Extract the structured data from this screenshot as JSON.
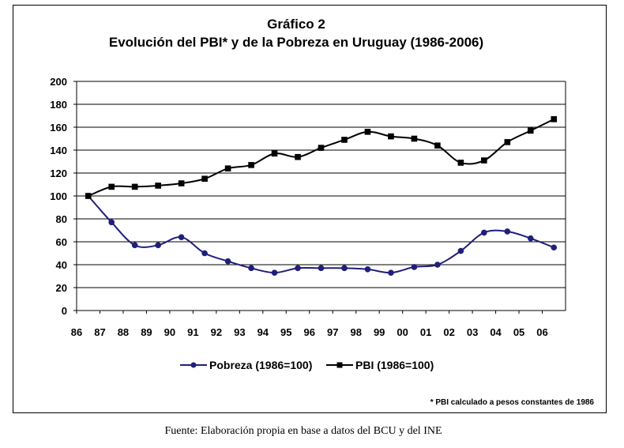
{
  "chart_data": {
    "type": "line",
    "title": "Gráfico 2",
    "subtitle": "Evolución del PBI* y de la Pobreza en Uruguay (1986-2006)",
    "categories": [
      "86",
      "87",
      "88",
      "89",
      "90",
      "91",
      "92",
      "93",
      "94",
      "95",
      "96",
      "97",
      "98",
      "99",
      "00",
      "01",
      "02",
      "03",
      "04",
      "05",
      "06"
    ],
    "ylim": [
      0,
      200
    ],
    "yticks": [
      "0",
      "20",
      "40",
      "60",
      "80",
      "100",
      "120",
      "140",
      "160",
      "180",
      "200"
    ],
    "grid": true,
    "legend_position": "bottom",
    "series": [
      {
        "name": "Pobreza (1986=100)",
        "color": "#1f1f7a",
        "marker": "circle",
        "values": [
          100,
          77,
          57,
          57,
          64,
          50,
          43,
          37,
          33,
          37,
          37,
          37,
          36,
          33,
          38,
          40,
          52,
          68,
          69,
          63,
          55
        ]
      },
      {
        "name": "PBI (1986=100)",
        "color": "#000000",
        "marker": "square",
        "values": [
          100,
          108,
          108,
          109,
          111,
          115,
          124,
          127,
          137,
          134,
          142,
          149,
          156,
          152,
          150,
          144,
          129,
          131,
          147,
          157,
          167
        ]
      }
    ],
    "annotation": "* PBI calculado a pesos constantes de  1986"
  },
  "source": "Fuente: Elaboración propia en base a datos del BCU y del INE"
}
